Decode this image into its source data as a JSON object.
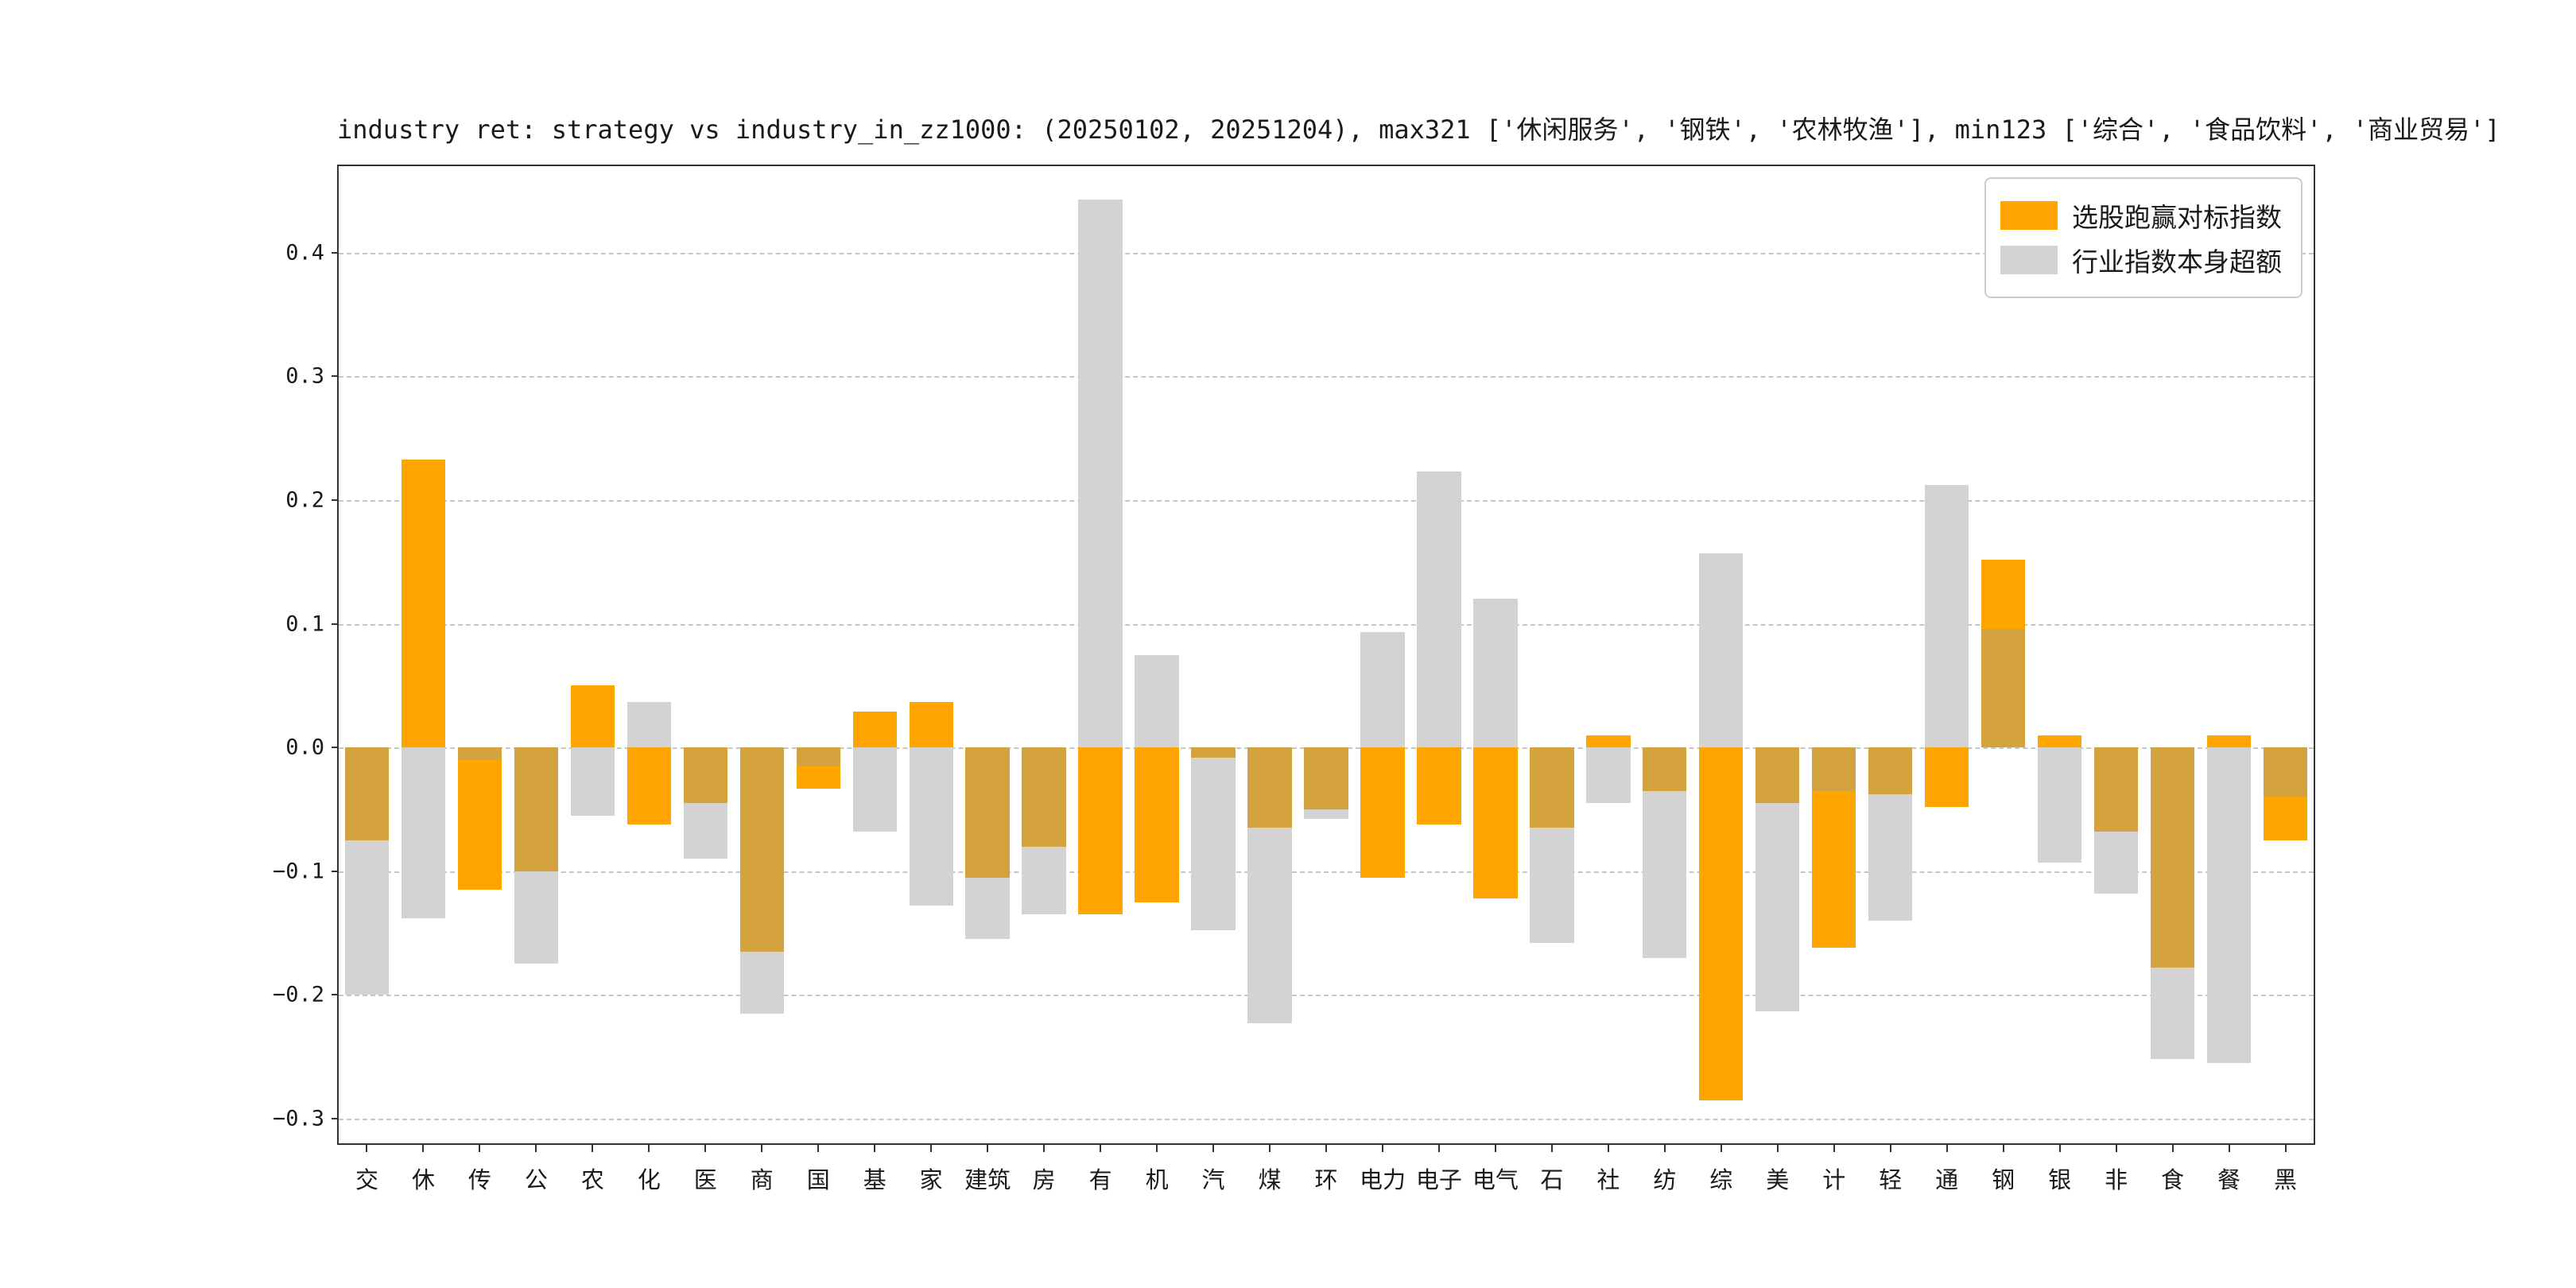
{
  "title": "industry ret: strategy vs industry_in_zz1000: (20250102, 20251204), max321 ['休闲服务', '钢铁', '农林牧渔'], min123 ['综合', '食品饮料', '商业贸易']",
  "chart_data": {
    "type": "bar",
    "title": "industry ret: strategy vs industry_in_zz1000: (20250102, 20251204), max321 ['休闲服务', '钢铁', '农林牧渔'], min123 ['综合', '食品饮料', '商业贸易']",
    "categories": [
      "交",
      "休",
      "传",
      "公",
      "农",
      "化",
      "医",
      "商",
      "国",
      "基",
      "家",
      "建筑",
      "房",
      "有",
      "机",
      "汽",
      "煤",
      "环",
      "电力",
      "电子",
      "电气",
      "石",
      "社",
      "纺",
      "综",
      "美",
      "计",
      "轻",
      "通",
      "钢",
      "银",
      "非",
      "食",
      "餐",
      "黑"
    ],
    "series": [
      {
        "name": "选股跑赢对标指数",
        "color": "#FFA500",
        "values": [
          -0.075,
          0.233,
          -0.115,
          -0.1,
          0.05,
          -0.062,
          -0.045,
          -0.165,
          -0.033,
          0.029,
          0.037,
          -0.105,
          -0.08,
          -0.135,
          -0.125,
          -0.008,
          -0.065,
          -0.05,
          -0.105,
          -0.062,
          -0.122,
          -0.065,
          0.01,
          -0.035,
          -0.285,
          -0.045,
          -0.162,
          -0.038,
          -0.048,
          0.152,
          0.01,
          -0.068,
          -0.178,
          0.01,
          -0.075
        ]
      },
      {
        "name": "行业指数本身超额",
        "color": "#D3D3D3",
        "values": [
          -0.2,
          -0.138,
          -0.01,
          -0.175,
          -0.055,
          0.037,
          -0.09,
          -0.215,
          -0.015,
          -0.068,
          -0.128,
          -0.155,
          -0.135,
          0.443,
          0.075,
          -0.148,
          -0.223,
          -0.058,
          0.093,
          0.223,
          0.12,
          -0.158,
          -0.045,
          -0.17,
          0.157,
          -0.213,
          -0.035,
          -0.14,
          0.212,
          0.096,
          -0.093,
          -0.118,
          -0.252,
          -0.255,
          -0.04
        ]
      }
    ],
    "overlap_color": "#D4A23E",
    "ylim": [
      -0.32,
      0.47
    ],
    "yticks": [
      0.4,
      0.3,
      0.2,
      0.1,
      0.0,
      -0.1,
      -0.2,
      -0.3
    ],
    "ytick_labels": [
      "0.4",
      "0.3",
      "0.2",
      "0.1",
      "0.0",
      "−0.1",
      "−0.2",
      "−0.3"
    ],
    "xlabel": "",
    "ylabel": "",
    "grid": "dashed-horizontal",
    "legend_position": "upper-right",
    "bar_width_ratio": 0.78
  }
}
